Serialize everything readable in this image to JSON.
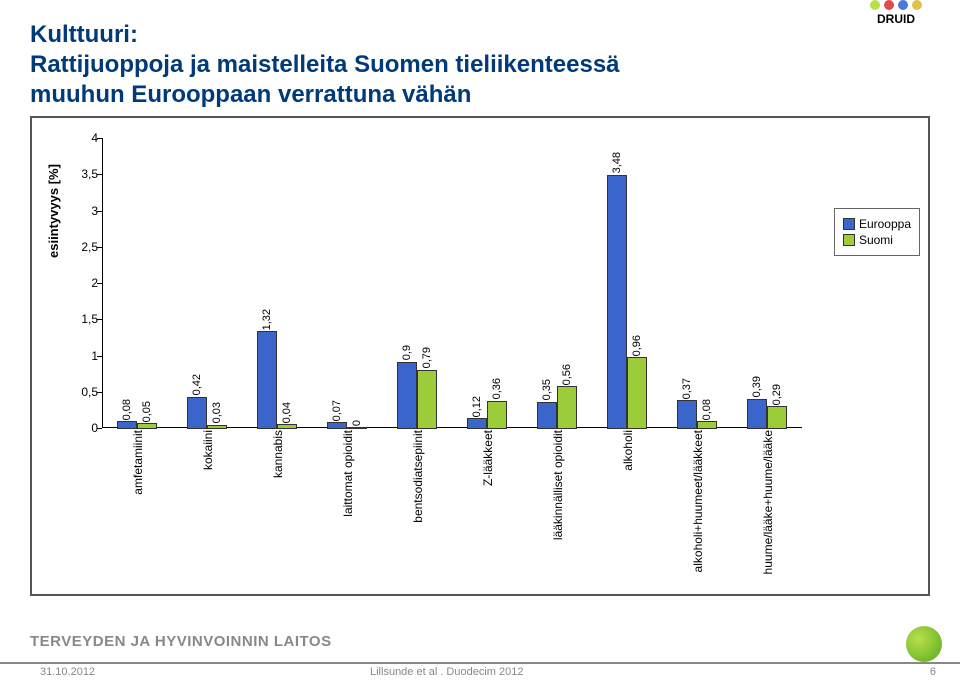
{
  "header": {
    "line1": "Kulttuuri:",
    "line2": "Rattijuoppoja ja maistelleita Suomen tieliikenteessä",
    "line3": "muuhun Eurooppaan verrattuna vähän",
    "color": "#003a7a",
    "fontsize": 24
  },
  "logo": {
    "text": "DRUID",
    "dots": [
      "#b8e04a",
      "#e04a4a",
      "#4a77e0",
      "#e0c14a"
    ]
  },
  "chart": {
    "type": "bar",
    "ylabel": "esiintyvyys [%]",
    "ylim": [
      0,
      4
    ],
    "yticks": [
      0,
      0.5,
      1,
      1.5,
      2,
      2.5,
      3,
      3.5,
      4
    ],
    "categories": [
      "amfetamiinit",
      "kokaiini",
      "kannabis",
      "laittomat opioidit",
      "bentsodiatsepiinit",
      "Z-lääkkeet",
      "lääkinnälliset opioidit",
      "alkoholi",
      "alkoholi+huumeet/lääkkeet",
      "huume/lääke+huume/lääke"
    ],
    "series": [
      {
        "name": "Eurooppa",
        "color": "#3a66cc",
        "values": [
          0.08,
          0.42,
          1.32,
          0.07,
          0.9,
          0.12,
          0.35,
          3.48,
          0.37,
          0.39
        ]
      },
      {
        "name": "Suomi",
        "color": "#9ccc3a",
        "values": [
          0.05,
          0.03,
          0.04,
          0,
          0.79,
          0.36,
          0.56,
          0.96,
          0.08,
          0.29
        ]
      }
    ],
    "label_fontsize": 12,
    "bar_edge": "#333333",
    "background_color": "#ffffff",
    "border_color": "#555555"
  },
  "legend": {
    "items": [
      {
        "label": "Eurooppa",
        "color": "#3a66cc"
      },
      {
        "label": "Suomi",
        "color": "#9ccc3a"
      }
    ]
  },
  "footer": {
    "org": "TERVEYDEN JA HYVINVOINNIN LAITOS",
    "date": "31.10.2012",
    "citation": "Lillsunde et al . Duodecim 2012",
    "page": "6",
    "org_color": "#888888"
  }
}
